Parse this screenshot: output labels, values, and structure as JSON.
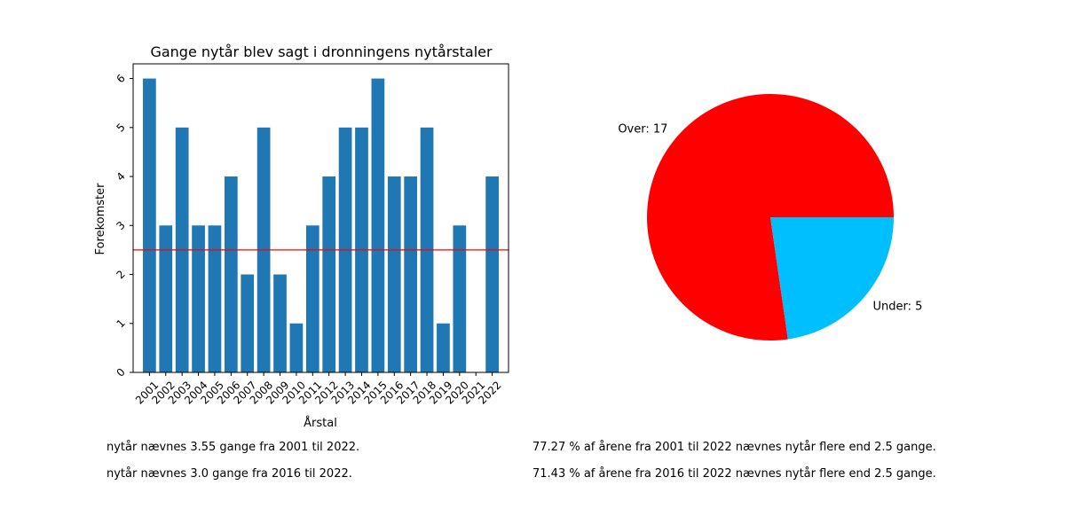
{
  "chart_data": [
    {
      "type": "bar",
      "title": "Gange nytår blev sagt i dronningens nytårstaler",
      "xlabel": "Årstal",
      "ylabel": "Forekomster",
      "categories": [
        "2001",
        "2002",
        "2003",
        "2004",
        "2005",
        "2006",
        "2007",
        "2008",
        "2009",
        "2010",
        "2011",
        "2012",
        "2013",
        "2014",
        "2015",
        "2016",
        "2017",
        "2018",
        "2019",
        "2020",
        "2021",
        "2022"
      ],
      "values": [
        6,
        3,
        5,
        3,
        3,
        4,
        2,
        5,
        2,
        1,
        3,
        4,
        5,
        5,
        6,
        4,
        4,
        5,
        1,
        3,
        0,
        4
      ],
      "yticks": [
        0,
        1,
        2,
        3,
        4,
        5,
        6
      ],
      "ylim": [
        0,
        6.3
      ],
      "threshold_line": 2.5,
      "bar_color": "#1f77b4",
      "threshold_color": "#ff0000",
      "grid": false
    },
    {
      "type": "pie",
      "labels": [
        "Over: 17",
        "Under: 5"
      ],
      "values": [
        17,
        5
      ],
      "colors": [
        "#ff0000",
        "#00bfff"
      ]
    }
  ],
  "notes": {
    "left": [
      "nytår nævnes 3.55 gange fra 2001 til 2022.",
      "nytår nævnes 3.0 gange fra 2016 til 2022."
    ],
    "right": [
      "77.27 % af årene fra 2001 til 2022 nævnes nytår flere end 2.5 gange.",
      "71.43 % af årene fra 2016 til 2022 nævnes nytår flere end 2.5 gange."
    ]
  }
}
